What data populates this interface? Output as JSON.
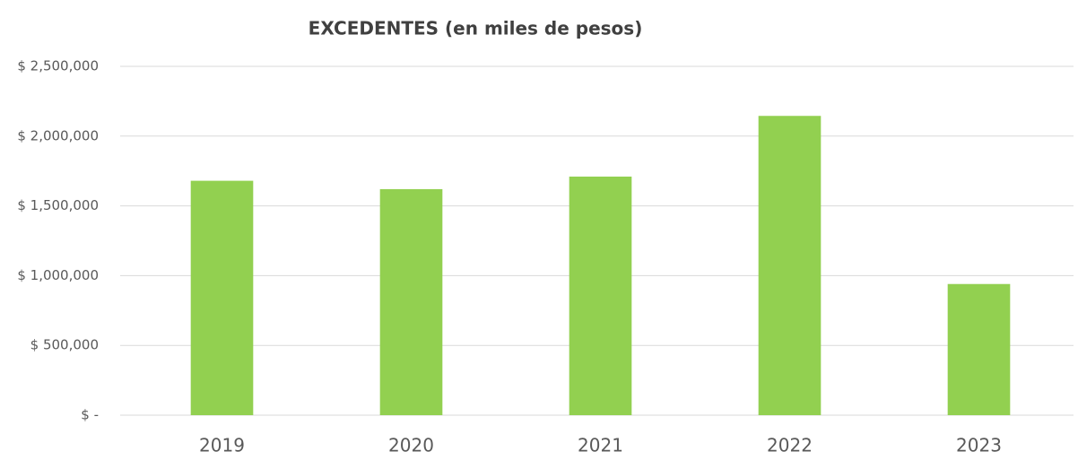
{
  "chart_data": {
    "type": "bar",
    "title": "EXCEDENTES (en miles de pesos)",
    "categories": [
      "2019",
      "2020",
      "2021",
      "2022",
      "2023"
    ],
    "values": [
      1680000,
      1620000,
      1710000,
      2145000,
      940000
    ],
    "color": "#92d050",
    "ylim": [
      0,
      2500000
    ],
    "yticks": [
      {
        "value": 0,
        "label": "$ -"
      },
      {
        "value": 500000,
        "label": "$ 500,000"
      },
      {
        "value": 1000000,
        "label": "$ 1,000,000"
      },
      {
        "value": 1500000,
        "label": "$ 1,500,000"
      },
      {
        "value": 2000000,
        "label": "$ 2,000,000"
      },
      {
        "value": 2500000,
        "label": "$ 2,500,000"
      }
    ],
    "grid": true
  }
}
